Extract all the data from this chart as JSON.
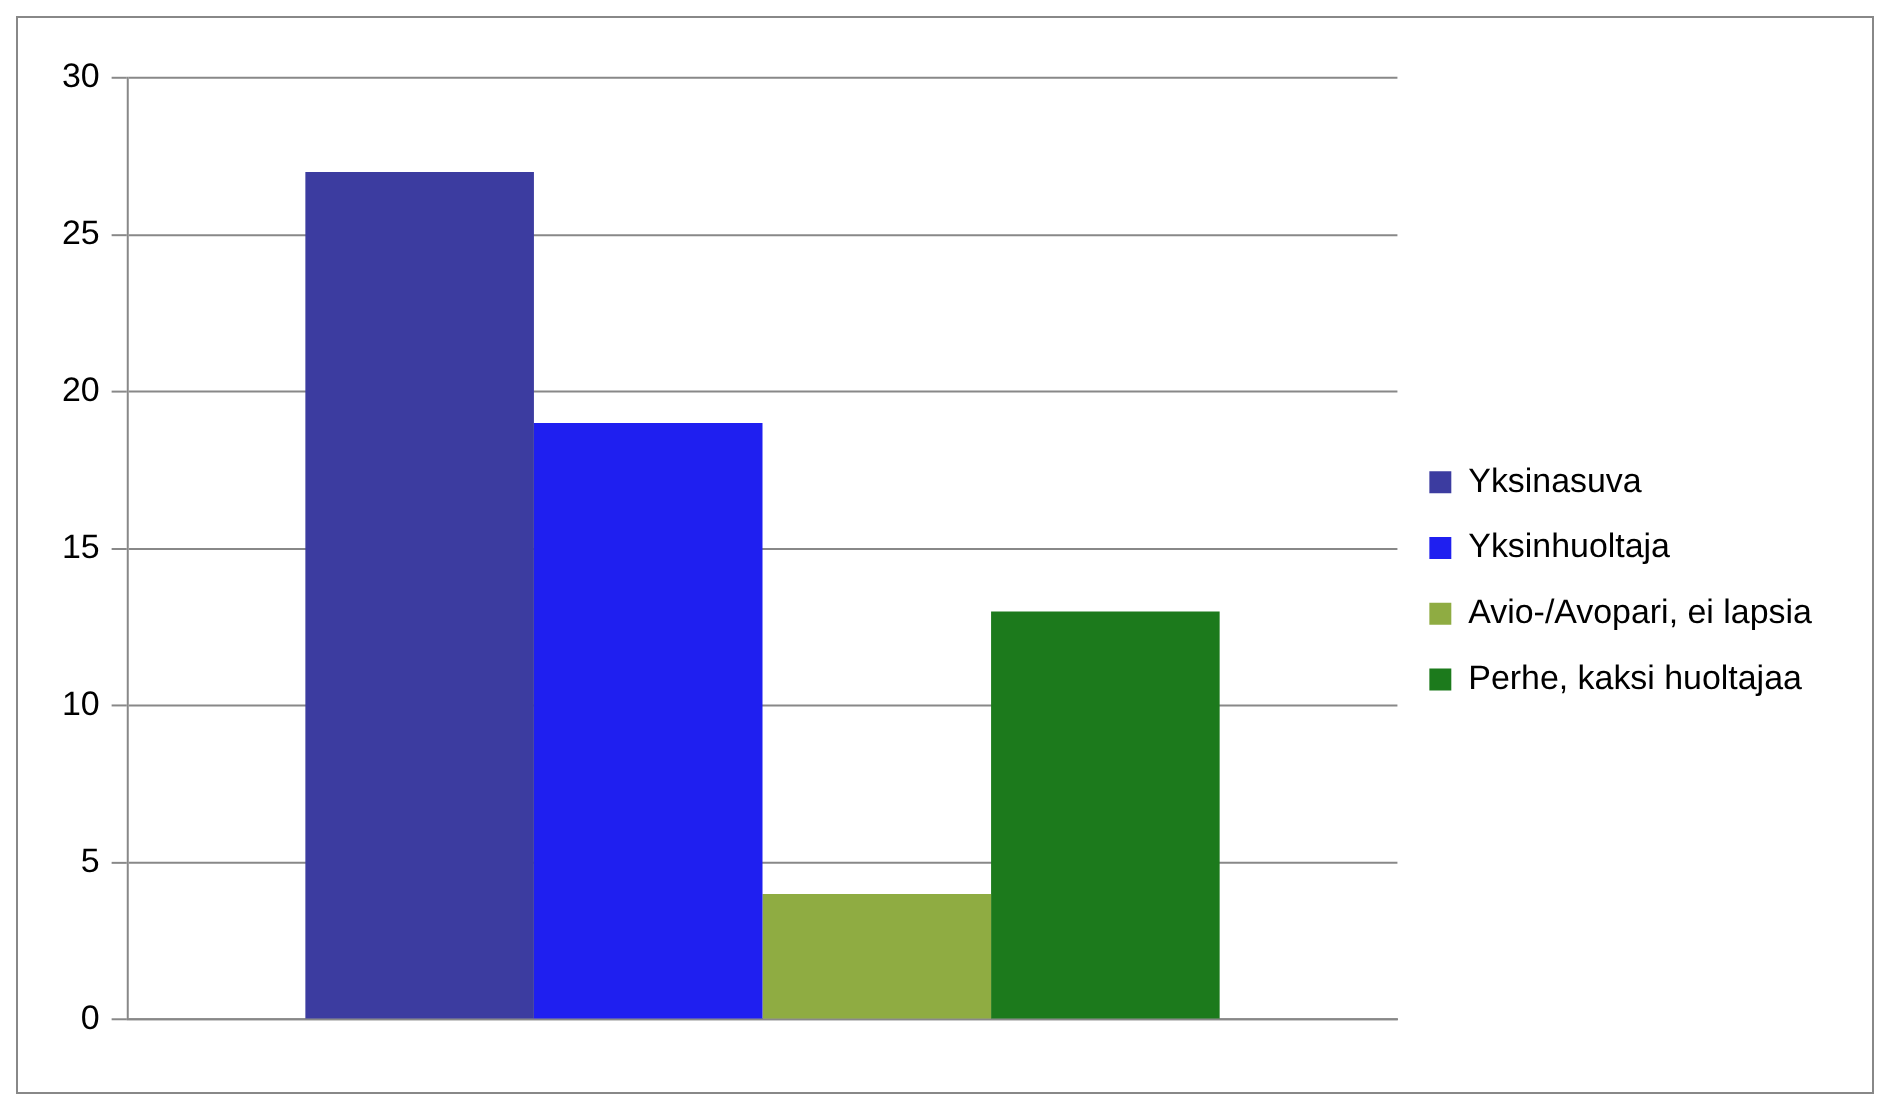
{
  "chart_data": {
    "type": "bar",
    "categories": [
      null
    ],
    "series": [
      {
        "name": "Yksinasuva",
        "color": "#3c3ca0",
        "values": [
          27
        ]
      },
      {
        "name": "Yksinhuoltaja",
        "color": "#1f1ff0",
        "values": [
          19
        ]
      },
      {
        "name": "Avio-/Avopari, ei lapsia",
        "color": "#8fac42",
        "values": [
          4
        ]
      },
      {
        "name": "Perhe, kaksi huoltajaa",
        "color": "#1c7a1c",
        "values": [
          13
        ]
      }
    ],
    "ylim": [
      0,
      30
    ],
    "yticks": [
      0,
      5,
      10,
      15,
      20,
      25,
      30
    ],
    "grid": "y",
    "legend": "right"
  }
}
